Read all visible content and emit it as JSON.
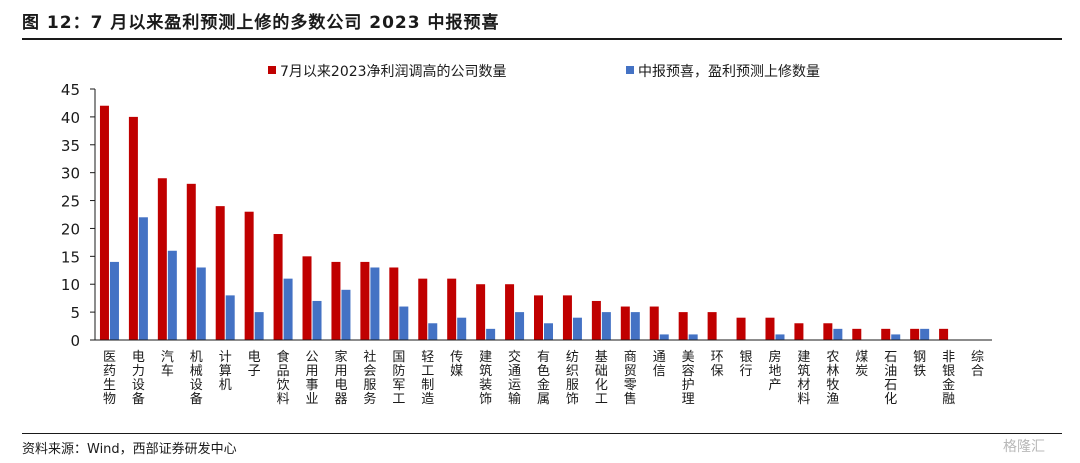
{
  "figure": {
    "title": "图 12：7 月以来盈利预测上修的多数公司 2023 中报预喜",
    "source": "资料来源：Wind，西部证券研发中心",
    "watermark": "格隆汇"
  },
  "chart_data": {
    "type": "bar",
    "title": "",
    "xlabel": "",
    "ylabel": "",
    "ylim": [
      0,
      45
    ],
    "yticks": [
      0,
      5,
      10,
      15,
      20,
      25,
      30,
      35,
      40,
      45
    ],
    "grid": false,
    "legend_position": "top-center",
    "categories": [
      "医药生物",
      "电力设备",
      "汽车",
      "机械设备",
      "计算机",
      "电子",
      "食品饮料",
      "公用事业",
      "家用电器",
      "社会服务",
      "国防军工",
      "轻工制造",
      "传媒",
      "建筑装饰",
      "交通运输",
      "有色金属",
      "纺织服饰",
      "基础化工",
      "商贸零售",
      "通信",
      "美容护理",
      "环保",
      "银行",
      "房地产",
      "建筑材料",
      "农林牧渔",
      "煤炭",
      "石油石化",
      "钢铁",
      "非银金融",
      "综合"
    ],
    "series": [
      {
        "name": "7月以来2023净利润调高的公司数量",
        "color": "#c00000",
        "values": [
          42,
          40,
          29,
          28,
          24,
          23,
          19,
          15,
          14,
          14,
          13,
          11,
          11,
          10,
          10,
          8,
          8,
          7,
          6,
          6,
          5,
          5,
          4,
          4,
          3,
          3,
          2,
          2,
          2,
          2,
          0
        ]
      },
      {
        "name": "中报预喜，盈利预测上修数量",
        "color": "#4472c4",
        "values": [
          14,
          22,
          16,
          13,
          8,
          5,
          11,
          7,
          9,
          13,
          6,
          3,
          4,
          2,
          5,
          3,
          4,
          5,
          5,
          1,
          1,
          0,
          0,
          1,
          0,
          2,
          0,
          1,
          2,
          0,
          0
        ]
      }
    ]
  }
}
